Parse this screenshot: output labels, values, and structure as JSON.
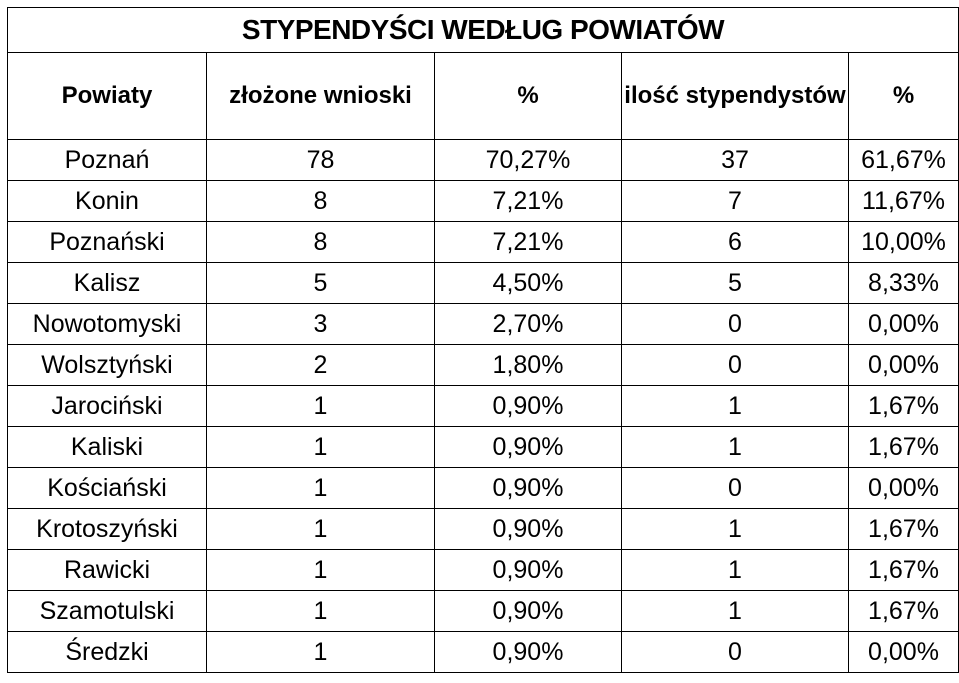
{
  "chart_data": {
    "type": "table",
    "title": "STYPENDYŚCI WEDŁUG POWIATÓW",
    "columns": [
      "Powiaty",
      "złożone wnioski",
      "%",
      "ilość stypendystów",
      "%"
    ],
    "rows": [
      [
        "Poznań",
        "78",
        "70,27%",
        "37",
        "61,67%"
      ],
      [
        "Konin",
        "8",
        "7,21%",
        "7",
        "11,67%"
      ],
      [
        "Poznański",
        "8",
        "7,21%",
        "6",
        "10,00%"
      ],
      [
        "Kalisz",
        "5",
        "4,50%",
        "5",
        "8,33%"
      ],
      [
        "Nowotomyski",
        "3",
        "2,70%",
        "0",
        "0,00%"
      ],
      [
        "Wolsztyński",
        "2",
        "1,80%",
        "0",
        "0,00%"
      ],
      [
        "Jarociński",
        "1",
        "0,90%",
        "1",
        "1,67%"
      ],
      [
        "Kaliski",
        "1",
        "0,90%",
        "1",
        "1,67%"
      ],
      [
        "Kościański",
        "1",
        "0,90%",
        "0",
        "0,00%"
      ],
      [
        "Krotoszyński",
        "1",
        "0,90%",
        "1",
        "1,67%"
      ],
      [
        "Rawicki",
        "1",
        "0,90%",
        "1",
        "1,67%"
      ],
      [
        "Szamotulski",
        "1",
        "0,90%",
        "1",
        "1,67%"
      ],
      [
        "Średzki",
        "1",
        "0,90%",
        "0",
        "0,00%"
      ]
    ]
  }
}
